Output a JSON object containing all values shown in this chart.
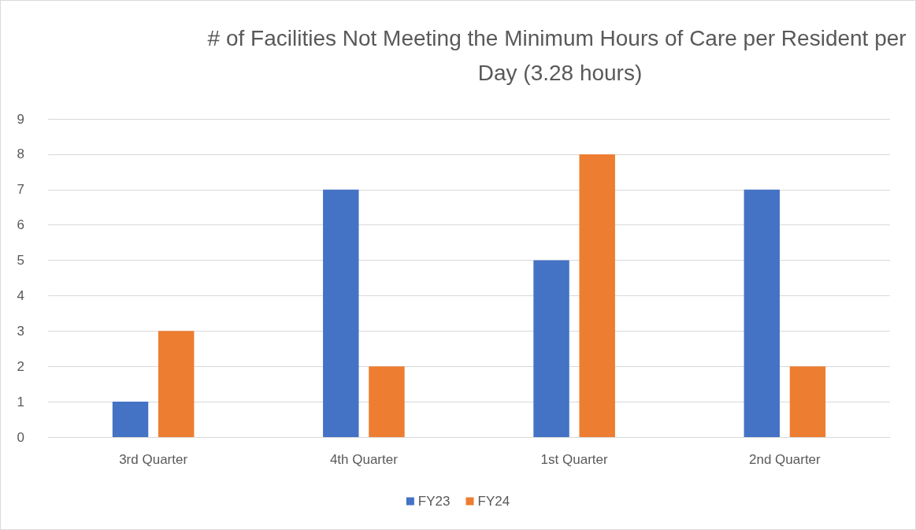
{
  "chart_data": {
    "type": "bar",
    "title": "# of Facilities Not Meeting the Minimum Hours of Care per Resident per Day (3.28 hours)",
    "categories": [
      "3rd Quarter",
      "4th Quarter",
      "1st Quarter",
      "2nd Quarter"
    ],
    "series": [
      {
        "name": "FY23",
        "color": "#4472c4",
        "values": [
          1,
          7,
          5,
          7
        ]
      },
      {
        "name": "FY24",
        "color": "#ed7d31",
        "values": [
          3,
          2,
          8,
          2
        ]
      }
    ],
    "ylim": [
      0,
      9
    ],
    "yticks": [
      0,
      1,
      2,
      3,
      4,
      5,
      6,
      7,
      8,
      9
    ],
    "grid": "y",
    "legend": "bottom"
  }
}
